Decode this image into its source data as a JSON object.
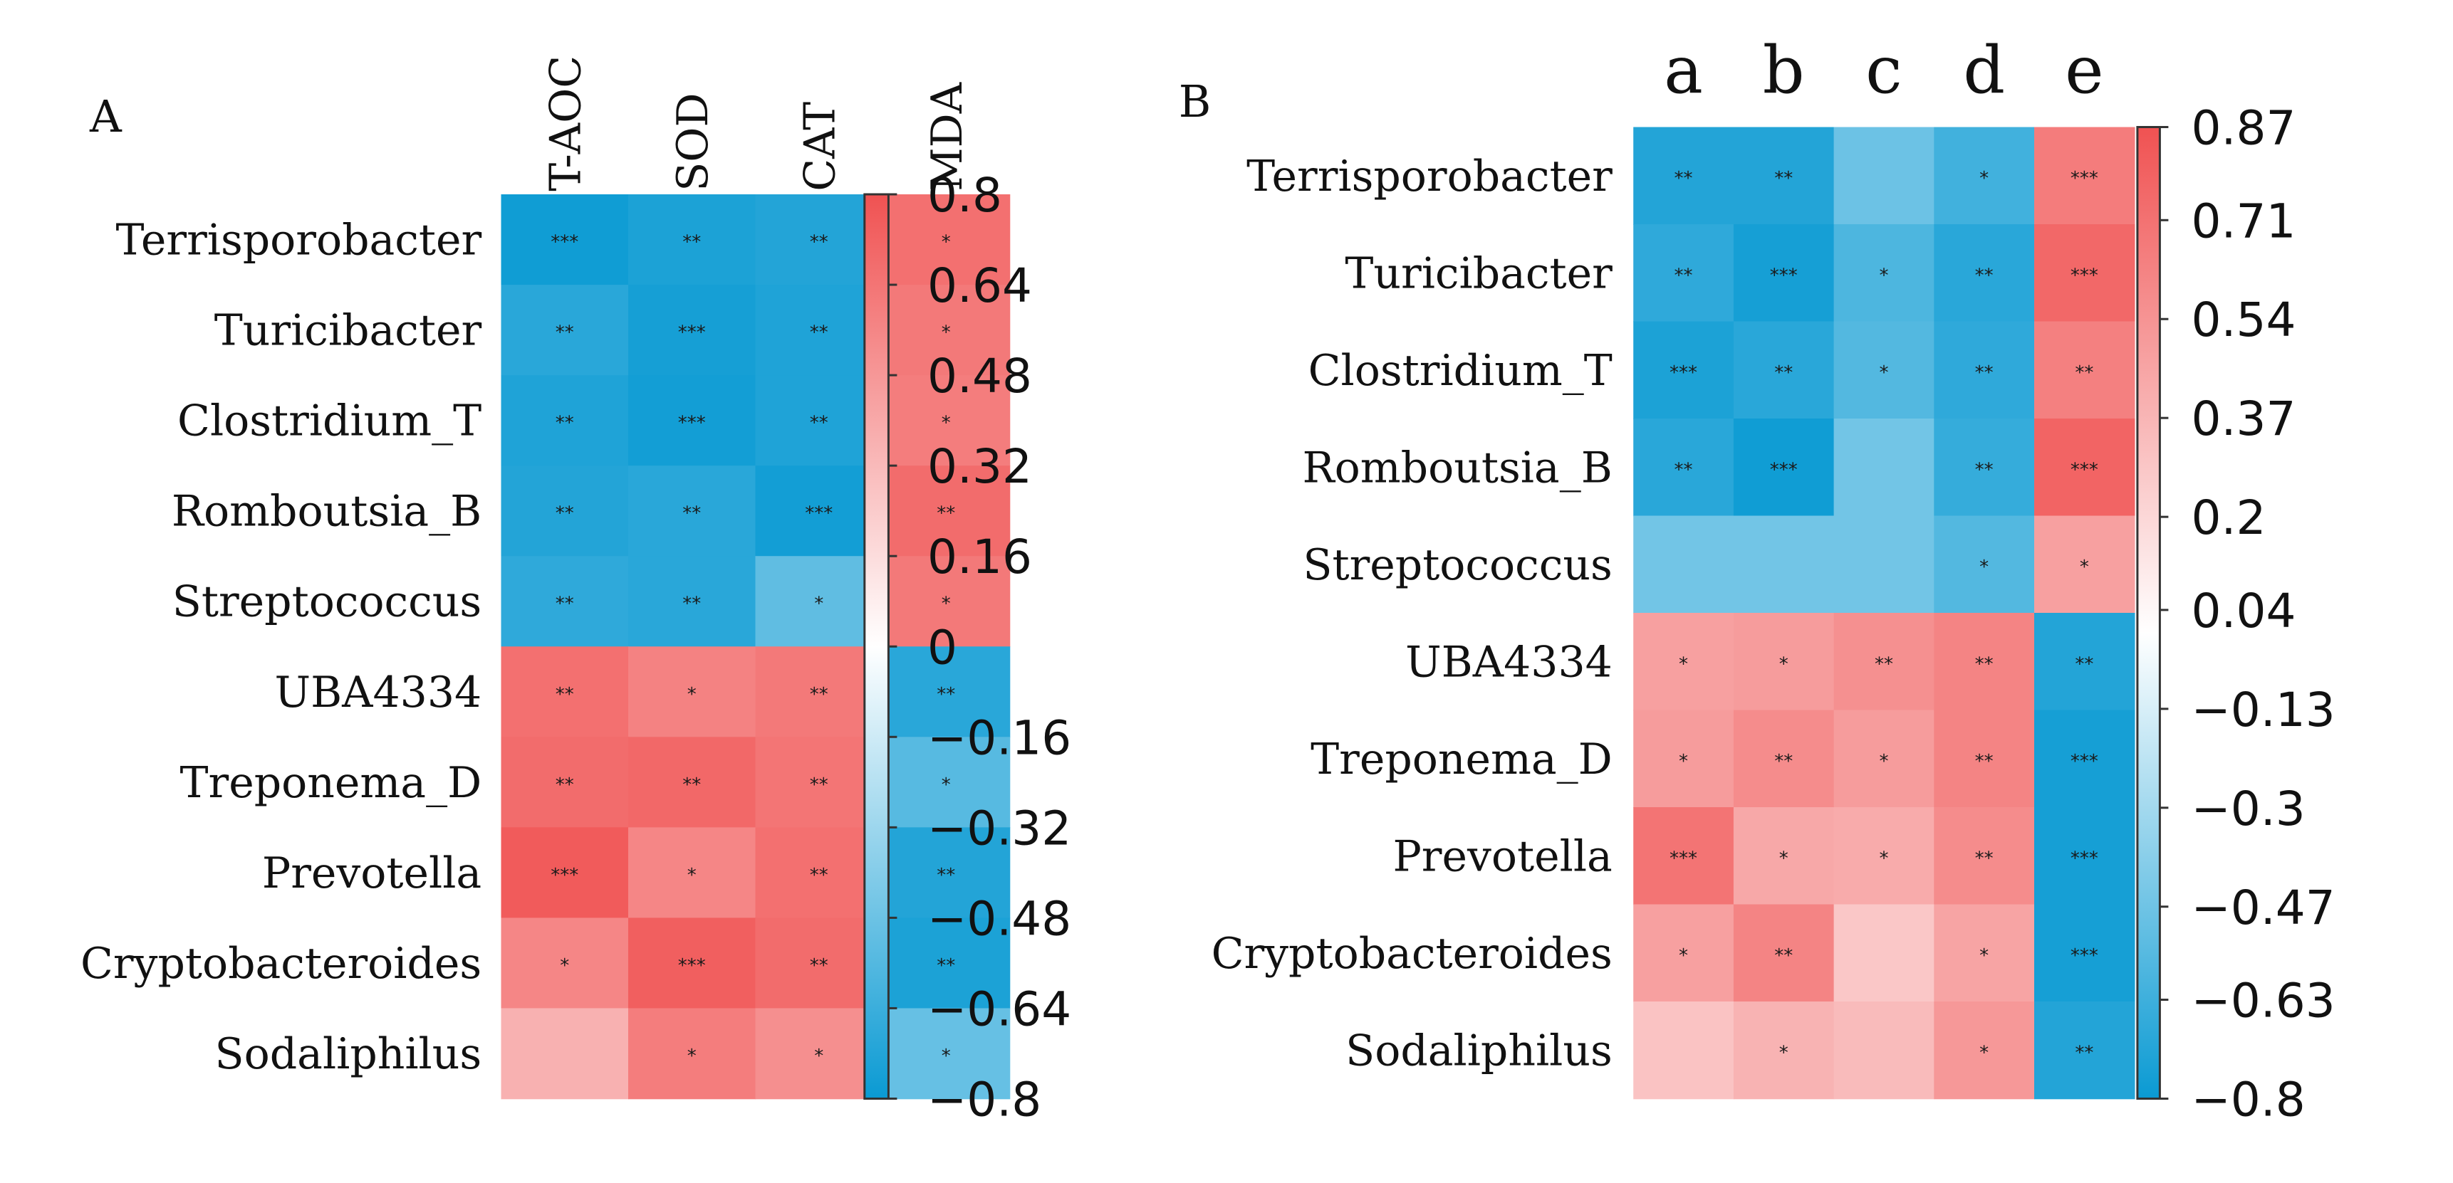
{
  "colors": {
    "neg": "#0a9ad3",
    "mid": "#ffffff",
    "pos": "#f05252",
    "frame": "#333333"
  },
  "chart_data": [
    {
      "type": "heatmap",
      "panel": "A",
      "rows": [
        "Terrisporobacter",
        "Turicibacter",
        "Clostridium_T",
        "Romboutsia_B",
        "Streptococcus",
        "UBA4334",
        "Treponema_D",
        "Prevotella",
        "Cryptobacteroides",
        "Sodaliphilus"
      ],
      "columns": [
        "T-AOC",
        "SOD",
        "CAT",
        "MDA"
      ],
      "values": [
        [
          -0.78,
          -0.74,
          -0.72,
          0.66
        ],
        [
          -0.7,
          -0.76,
          -0.73,
          0.62
        ],
        [
          -0.73,
          -0.77,
          -0.73,
          0.6
        ],
        [
          -0.72,
          -0.7,
          -0.77,
          0.68
        ],
        [
          -0.68,
          -0.7,
          -0.52,
          0.62
        ],
        [
          0.66,
          0.58,
          0.62,
          -0.7
        ],
        [
          0.68,
          0.7,
          0.64,
          -0.55
        ],
        [
          0.76,
          0.56,
          0.66,
          -0.72
        ],
        [
          0.56,
          0.74,
          0.68,
          -0.74
        ],
        [
          0.36,
          0.6,
          0.52,
          -0.5
        ]
      ],
      "annotations": [
        [
          "***",
          "**",
          "**",
          "*"
        ],
        [
          "**",
          "***",
          "**",
          "*"
        ],
        [
          "**",
          "***",
          "**",
          "*"
        ],
        [
          "**",
          "**",
          "***",
          "**"
        ],
        [
          "**",
          "**",
          "*",
          "*"
        ],
        [
          "**",
          "*",
          "**",
          "**"
        ],
        [
          "**",
          "**",
          "**",
          "*"
        ],
        [
          "***",
          "*",
          "**",
          "**"
        ],
        [
          "*",
          "***",
          "**",
          "**"
        ],
        [
          "",
          "*",
          "*",
          "*"
        ]
      ],
      "colorbar": {
        "min": -0.8,
        "max": 0.8,
        "ticks": [
          0.8,
          0.64,
          0.48,
          0.32,
          0.16,
          0,
          -0.16,
          -0.32,
          -0.48,
          -0.64,
          -0.8
        ],
        "tick_labels": [
          "0.8",
          "0.64",
          "0.48",
          "0.32",
          "0.16",
          "0",
          "−0.16",
          "−0.32",
          "−0.48",
          "−0.64",
          "−0.8"
        ]
      }
    },
    {
      "type": "heatmap",
      "panel": "B",
      "rows": [
        "Terrisporobacter",
        "Turicibacter",
        "Clostridium_T",
        "Romboutsia_B",
        "Streptococcus",
        "UBA4334",
        "Treponema_D",
        "Prevotella",
        "Cryptobacteroides",
        "Sodaliphilus"
      ],
      "columns": [
        "a",
        "b",
        "c",
        "d",
        "e"
      ],
      "values": [
        [
          -0.72,
          -0.72,
          -0.48,
          -0.62,
          0.66
        ],
        [
          -0.68,
          -0.76,
          -0.58,
          -0.7,
          0.76
        ],
        [
          -0.74,
          -0.7,
          -0.56,
          -0.68,
          0.64
        ],
        [
          -0.7,
          -0.78,
          -0.46,
          -0.66,
          0.78
        ],
        [
          -0.46,
          -0.46,
          -0.46,
          -0.56,
          0.48
        ],
        [
          0.48,
          0.5,
          0.56,
          0.62,
          -0.72
        ],
        [
          0.5,
          0.58,
          0.5,
          0.62,
          -0.76
        ],
        [
          0.7,
          0.44,
          0.42,
          0.58,
          -0.76
        ],
        [
          0.48,
          0.62,
          0.28,
          0.46,
          -0.76
        ],
        [
          0.3,
          0.38,
          0.34,
          0.52,
          -0.72
        ]
      ],
      "annotations": [
        [
          "**",
          "**",
          "",
          "*",
          "***"
        ],
        [
          "**",
          "***",
          "*",
          "**",
          "***"
        ],
        [
          "***",
          "**",
          "*",
          "**",
          "**"
        ],
        [
          "**",
          "***",
          "",
          "**",
          "***"
        ],
        [
          "",
          "",
          "",
          "*",
          "*"
        ],
        [
          "*",
          "*",
          "**",
          "**",
          "**"
        ],
        [
          "*",
          "**",
          "*",
          "**",
          "***"
        ],
        [
          "***",
          "*",
          "*",
          "**",
          "***"
        ],
        [
          "*",
          "**",
          "",
          "*",
          "***"
        ],
        [
          "",
          "*",
          "",
          "*",
          "**"
        ]
      ],
      "colorbar": {
        "min": -0.8,
        "max": 0.87,
        "ticks": [
          0.87,
          0.71,
          0.54,
          0.37,
          0.2,
          0.04,
          -0.13,
          -0.3,
          -0.47,
          -0.63,
          -0.8
        ],
        "tick_labels": [
          "0.87",
          "0.71",
          "0.54",
          "0.37",
          "0.2",
          "0.04",
          "−0.13",
          "−0.3",
          "−0.47",
          "−0.63",
          "−0.8"
        ]
      }
    }
  ]
}
